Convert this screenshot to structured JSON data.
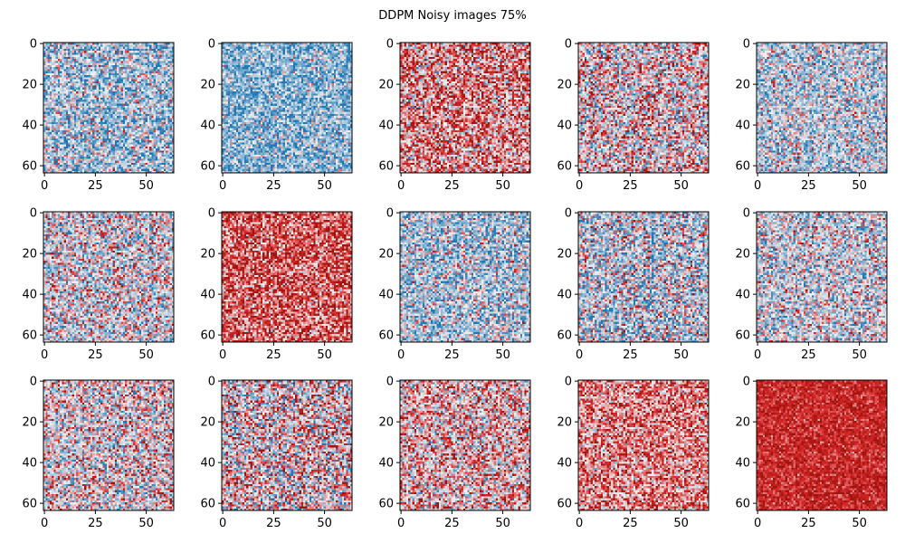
{
  "figure": {
    "title": "DDPM Noisy images 75%"
  },
  "chart_data": {
    "type": "heatmap",
    "title": "DDPM Noisy images 75%",
    "grid": false,
    "layout": {
      "rows": 3,
      "cols": 5
    },
    "image_size": 64,
    "x_ticks": [
      0,
      25,
      50
    ],
    "y_ticks": [
      0,
      20,
      40,
      60
    ],
    "colormap": {
      "negative": "#1f77b4",
      "zero": "#f2f2f2",
      "positive": "#d62728"
    },
    "panels": [
      {
        "bias": -0.35,
        "spread": 0.7
      },
      {
        "bias": -0.5,
        "spread": 0.6
      },
      {
        "bias": 0.35,
        "spread": 0.75
      },
      {
        "bias": 0.05,
        "spread": 0.8
      },
      {
        "bias": -0.25,
        "spread": 0.65
      },
      {
        "bias": -0.1,
        "spread": 0.75
      },
      {
        "bias": 0.55,
        "spread": 0.6
      },
      {
        "bias": -0.3,
        "spread": 0.7
      },
      {
        "bias": -0.2,
        "spread": 0.8
      },
      {
        "bias": -0.15,
        "spread": 0.7
      },
      {
        "bias": 0.0,
        "spread": 0.75
      },
      {
        "bias": 0.05,
        "spread": 0.85
      },
      {
        "bias": 0.15,
        "spread": 0.75
      },
      {
        "bias": 0.4,
        "spread": 0.6
      },
      {
        "bias": 0.75,
        "spread": 0.3
      }
    ]
  }
}
